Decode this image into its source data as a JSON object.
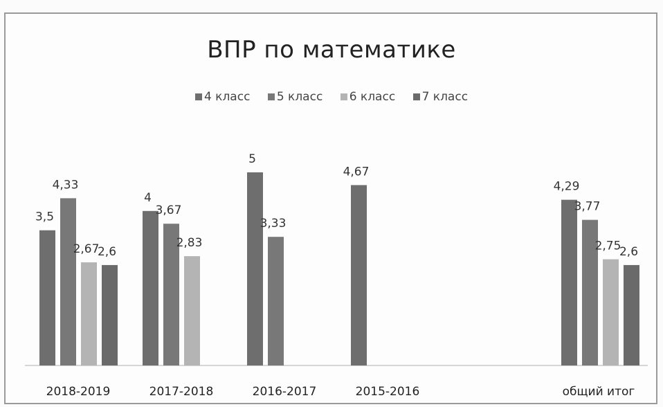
{
  "chart_data": {
    "type": "bar",
    "title": "ВПР по математике",
    "categories": [
      "2018-2019",
      "2017-2018",
      "2016-2017",
      "2015-2016",
      "общий итог"
    ],
    "series": [
      {
        "name": "4 класс",
        "color": "#6e6e6e",
        "values": [
          3.5,
          4,
          5,
          4.67,
          4.29
        ],
        "labels": [
          "3,5",
          "4",
          "5",
          "4,67",
          "4,29"
        ]
      },
      {
        "name": "5 класс",
        "color": "#787878",
        "values": [
          4.33,
          3.67,
          3.33,
          null,
          3.77
        ],
        "labels": [
          "4,33",
          "3,67",
          "3,33",
          "",
          "3,77"
        ]
      },
      {
        "name": "6 класс",
        "color": "#b4b4b4",
        "values": [
          2.67,
          2.83,
          null,
          null,
          2.75
        ],
        "labels": [
          "2,67",
          "2,83",
          "",
          "",
          "2,75"
        ]
      },
      {
        "name": "7 класс",
        "color": "#6a6a6a",
        "values": [
          2.6,
          null,
          null,
          null,
          2.6
        ],
        "labels": [
          "2,6",
          "",
          "",
          "",
          "2,6"
        ]
      }
    ],
    "ylim": [
      0,
      6
    ],
    "legend_position": "top",
    "grid": false
  }
}
